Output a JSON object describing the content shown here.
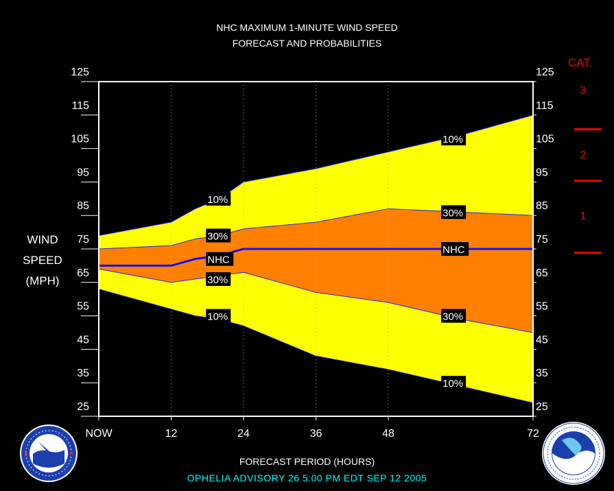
{
  "header": {
    "title_line1": "NHC MAXIMUM 1-MINUTE WIND SPEED",
    "title_line2": "FORECAST AND PROBABILITIES"
  },
  "yaxis": {
    "label_line1": "WIND",
    "label_line2": "SPEED",
    "label_line3": "(MPH)"
  },
  "categories": {
    "title": "CAT.",
    "labels": [
      "3",
      "2",
      "1"
    ],
    "color": "#ff0000"
  },
  "footer": {
    "xlabel": "FORECAST PERIOD (HOURS)",
    "advisory": "OPHELIA   ADVISORY  26 5:00  PM  EDT  SEP  12  2005"
  },
  "logos": {
    "left": "NWS seal",
    "right": "NOAA seal"
  },
  "chart_data": {
    "type": "area",
    "xlabel": "FORECAST PERIOD (HOURS)",
    "ylabel": "WIND SPEED (MPH)",
    "xlim": [
      0,
      72
    ],
    "ylim": [
      25,
      125
    ],
    "x_ticks": [
      0,
      12,
      24,
      36,
      48,
      72
    ],
    "x_tick_labels": [
      "NOW",
      "12",
      "24",
      "36",
      "48",
      "72"
    ],
    "y_ticks": [
      25,
      35,
      45,
      55,
      65,
      75,
      85,
      95,
      105,
      115,
      125
    ],
    "dotted_gridlines_x": [
      12,
      24,
      36,
      48
    ],
    "category_thresholds_mph": [
      74,
      96,
      111
    ],
    "x": [
      0,
      12,
      16,
      20,
      24,
      36,
      48,
      60,
      72
    ],
    "series": [
      {
        "name": "10%",
        "values": [
          79,
          83,
          87,
          90,
          95,
          99,
          104,
          109,
          115
        ],
        "color": "#ffff00"
      },
      {
        "name": "30%",
        "values": [
          75,
          76,
          78,
          79,
          81,
          83,
          87,
          86,
          85
        ],
        "color": "#ff8000"
      },
      {
        "name": "NHC",
        "values": [
          70,
          70,
          72,
          73,
          75,
          75,
          75,
          75,
          75
        ],
        "color": "#1010ff"
      },
      {
        "name": "30%",
        "values": [
          69,
          65,
          66,
          67,
          68,
          62,
          59,
          54,
          50
        ],
        "color": "#ff8000"
      },
      {
        "name": "10%",
        "values": [
          63,
          57,
          55,
          54,
          52,
          43,
          39,
          34,
          29
        ],
        "color": "#ffff00"
      }
    ],
    "labels": [
      {
        "text": "10%",
        "x": 18,
        "y": 90
      },
      {
        "text": "30%",
        "x": 18,
        "y": 79
      },
      {
        "text": "NHC",
        "x": 18,
        "y": 72
      },
      {
        "text": "30%",
        "x": 18,
        "y": 66
      },
      {
        "text": "10%",
        "x": 18,
        "y": 55
      },
      {
        "text": "10%",
        "x": 57,
        "y": 108
      },
      {
        "text": "30%",
        "x": 57,
        "y": 86
      },
      {
        "text": "NHC",
        "x": 57,
        "y": 75
      },
      {
        "text": "30%",
        "x": 57,
        "y": 55
      },
      {
        "text": "10%",
        "x": 57,
        "y": 35
      }
    ]
  }
}
